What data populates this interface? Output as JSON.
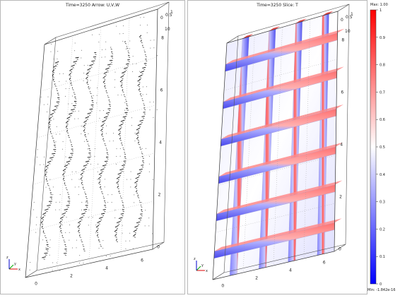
{
  "left_plot": {
    "title": "Time=3250   Arrow: U,V,W",
    "x_ticks": [
      "0",
      "2",
      "4",
      "6"
    ],
    "y_ticks": [
      "0",
      "2",
      "4",
      "6",
      "8"
    ],
    "z_ticks": [
      "0",
      "0.5",
      "1"
    ],
    "top_tick": "10"
  },
  "right_plot": {
    "title": "Time=3250   Slice: T",
    "x_ticks": [
      "0",
      "2",
      "4",
      "6"
    ],
    "y_ticks": [
      "0",
      "2",
      "4",
      "6",
      "8"
    ],
    "z_ticks": [
      "0",
      "0.5",
      "1"
    ],
    "top_tick": "10"
  },
  "axes_triad": {
    "x": "x",
    "y": "y",
    "z": "z"
  },
  "colorbar": {
    "max_label": "Max: 1.00",
    "min_label": "Min: -1.842e-16",
    "ticks": [
      "1",
      "0.9",
      "0.8",
      "0.7",
      "0.6",
      "0.5",
      "0.4",
      "0.3",
      "0.2",
      "0.1",
      "0"
    ],
    "colors": [
      "#0000ff",
      "#ffffff",
      "#ff0000"
    ]
  },
  "chart_data": {
    "type": "heatmap",
    "title": "Time=3250   Slice: T",
    "variable": "T",
    "time": 3250,
    "color_range": [
      -1.842e-16,
      1.0
    ],
    "x_range": [
      0,
      6
    ],
    "y_range": [
      0,
      10
    ],
    "z_range": [
      0,
      1
    ],
    "vertical_slices": 4,
    "horizontal_slices": 6
  }
}
